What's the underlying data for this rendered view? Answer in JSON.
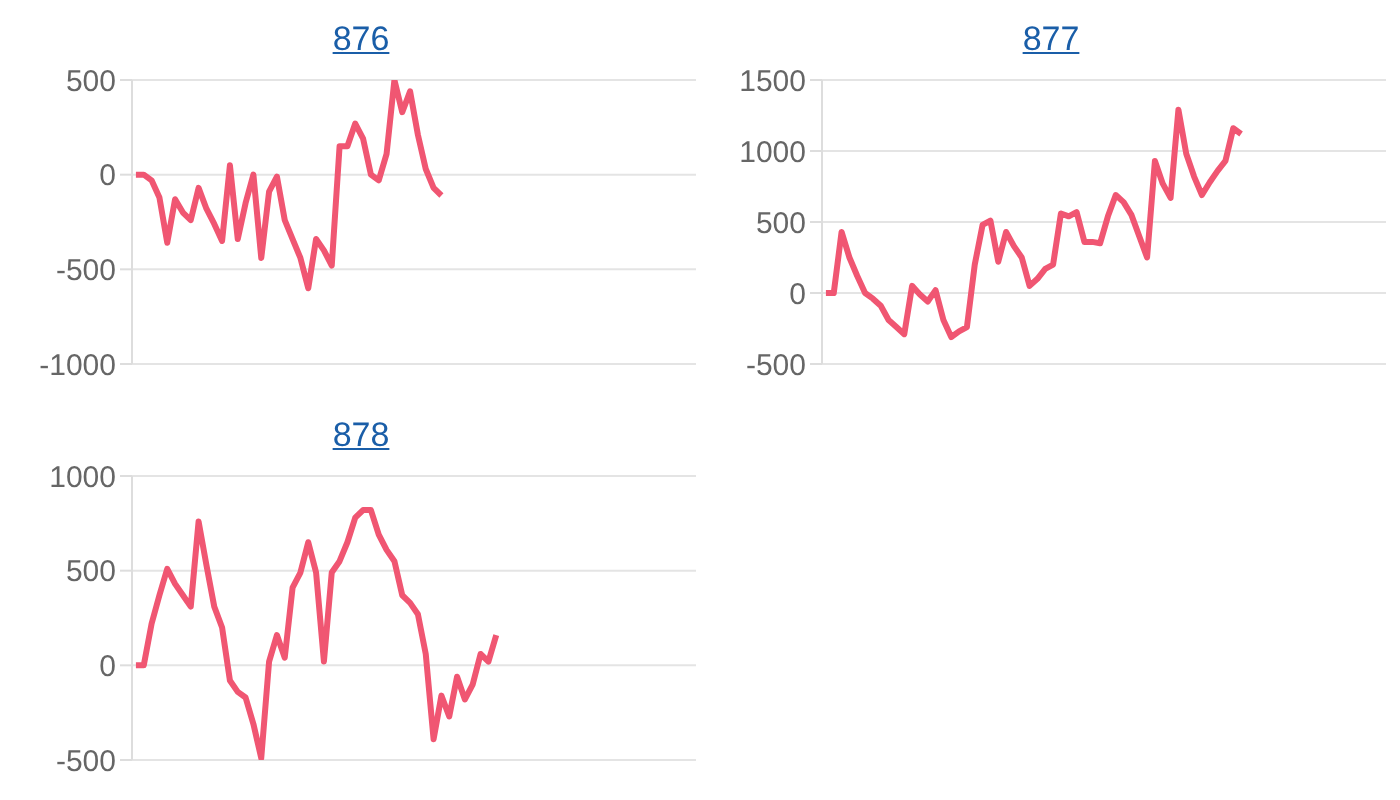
{
  "chart_data": [
    {
      "type": "line",
      "title": "876",
      "categories": [
        null,
        null,
        null,
        null,
        null,
        null,
        null,
        null,
        null,
        null,
        null,
        null,
        null,
        null,
        null,
        null,
        null,
        null,
        null,
        null,
        null,
        null,
        null,
        null,
        null,
        null,
        null,
        null,
        null,
        null,
        null,
        null,
        null,
        null,
        null,
        null,
        null,
        null,
        null,
        null,
        null,
        null,
        null,
        null,
        null,
        null,
        null,
        null,
        null,
        null,
        null,
        null,
        null,
        null,
        null,
        null,
        null,
        null,
        null,
        null,
        null,
        null,
        null,
        null,
        null,
        null,
        null,
        null,
        null,
        null,
        null,
        null
      ],
      "ylim": [
        -1000,
        500
      ],
      "yticks": [
        -1000,
        -500,
        0,
        500
      ],
      "grid": "y",
      "tick_labels": "y",
      "marker": "none",
      "series": [
        {
          "color": "#f05672",
          "values": [
            0,
            0,
            -30,
            -120,
            -360,
            -130,
            -200,
            -240,
            -70,
            -180,
            -260,
            -350,
            50,
            -340,
            -150,
            0,
            -440,
            -90,
            -10,
            -240,
            -340,
            -440,
            -600,
            -340,
            -400,
            -480,
            150,
            150,
            270,
            190,
            0,
            -30,
            110,
            500,
            330,
            440,
            210,
            30,
            -70,
            -110,
            null,
            null,
            null,
            null,
            null,
            null,
            null,
            null,
            null,
            null,
            null,
            null,
            null,
            null,
            null,
            null,
            null,
            null,
            null,
            null,
            null,
            null,
            null,
            null,
            null,
            null,
            null,
            null,
            null,
            null,
            null,
            null
          ]
        }
      ]
    },
    {
      "type": "line",
      "title": "877",
      "categories": [
        null,
        null,
        null,
        null,
        null,
        null,
        null,
        null,
        null,
        null,
        null,
        null,
        null,
        null,
        null,
        null,
        null,
        null,
        null,
        null,
        null,
        null,
        null,
        null,
        null,
        null,
        null,
        null,
        null,
        null,
        null,
        null,
        null,
        null,
        null,
        null,
        null,
        null,
        null,
        null,
        null,
        null,
        null,
        null,
        null,
        null,
        null,
        null,
        null,
        null,
        null,
        null,
        null,
        null,
        null,
        null,
        null,
        null,
        null,
        null,
        null,
        null,
        null,
        null,
        null,
        null,
        null,
        null,
        null,
        null,
        null,
        null
      ],
      "ylim": [
        -500,
        1500
      ],
      "yticks": [
        -500,
        0,
        500,
        1000,
        1500
      ],
      "grid": "y",
      "tick_labels": "y",
      "marker": "none",
      "series": [
        {
          "color": "#f05672",
          "values": [
            0,
            0,
            430,
            250,
            120,
            0,
            -40,
            -90,
            -190,
            -240,
            -290,
            50,
            -10,
            -60,
            20,
            -190,
            -310,
            -270,
            -240,
            200,
            480,
            510,
            220,
            430,
            330,
            250,
            50,
            100,
            170,
            200,
            560,
            540,
            570,
            360,
            360,
            350,
            540,
            690,
            640,
            550,
            400,
            250,
            930,
            770,
            670,
            1290,
            980,
            820,
            690,
            780,
            860,
            930,
            1160,
            1120,
            null,
            null,
            null,
            null,
            null,
            null,
            null,
            null,
            null,
            null,
            null,
            null,
            null,
            null,
            null,
            null,
            null,
            null
          ]
        }
      ]
    },
    {
      "type": "line",
      "title": "878",
      "categories": [
        null,
        null,
        null,
        null,
        null,
        null,
        null,
        null,
        null,
        null,
        null,
        null,
        null,
        null,
        null,
        null,
        null,
        null,
        null,
        null,
        null,
        null,
        null,
        null,
        null,
        null,
        null,
        null,
        null,
        null,
        null,
        null,
        null,
        null,
        null,
        null,
        null,
        null,
        null,
        null,
        null,
        null,
        null,
        null,
        null,
        null,
        null,
        null,
        null,
        null,
        null,
        null,
        null,
        null,
        null,
        null,
        null,
        null,
        null,
        null,
        null,
        null,
        null,
        null,
        null,
        null,
        null,
        null,
        null,
        null,
        null,
        null
      ],
      "ylim": [
        -500,
        1000
      ],
      "yticks": [
        -500,
        0,
        500,
        1000
      ],
      "grid": "y",
      "tick_labels": "y",
      "marker": "none",
      "series": [
        {
          "color": "#f05672",
          "values": [
            0,
            0,
            220,
            370,
            510,
            430,
            370,
            310,
            760,
            530,
            310,
            200,
            -80,
            -140,
            -170,
            -310,
            -490,
            20,
            160,
            40,
            410,
            490,
            650,
            490,
            20,
            490,
            550,
            650,
            780,
            820,
            820,
            690,
            610,
            550,
            370,
            330,
            270,
            60,
            -390,
            -160,
            -270,
            -60,
            -180,
            -100,
            60,
            20,
            160,
            null,
            null,
            null,
            null,
            null,
            null,
            null,
            null,
            null,
            null,
            null,
            null,
            null,
            null,
            null,
            null,
            null,
            null,
            null,
            null,
            null,
            null,
            null,
            null,
            null
          ]
        }
      ]
    }
  ]
}
